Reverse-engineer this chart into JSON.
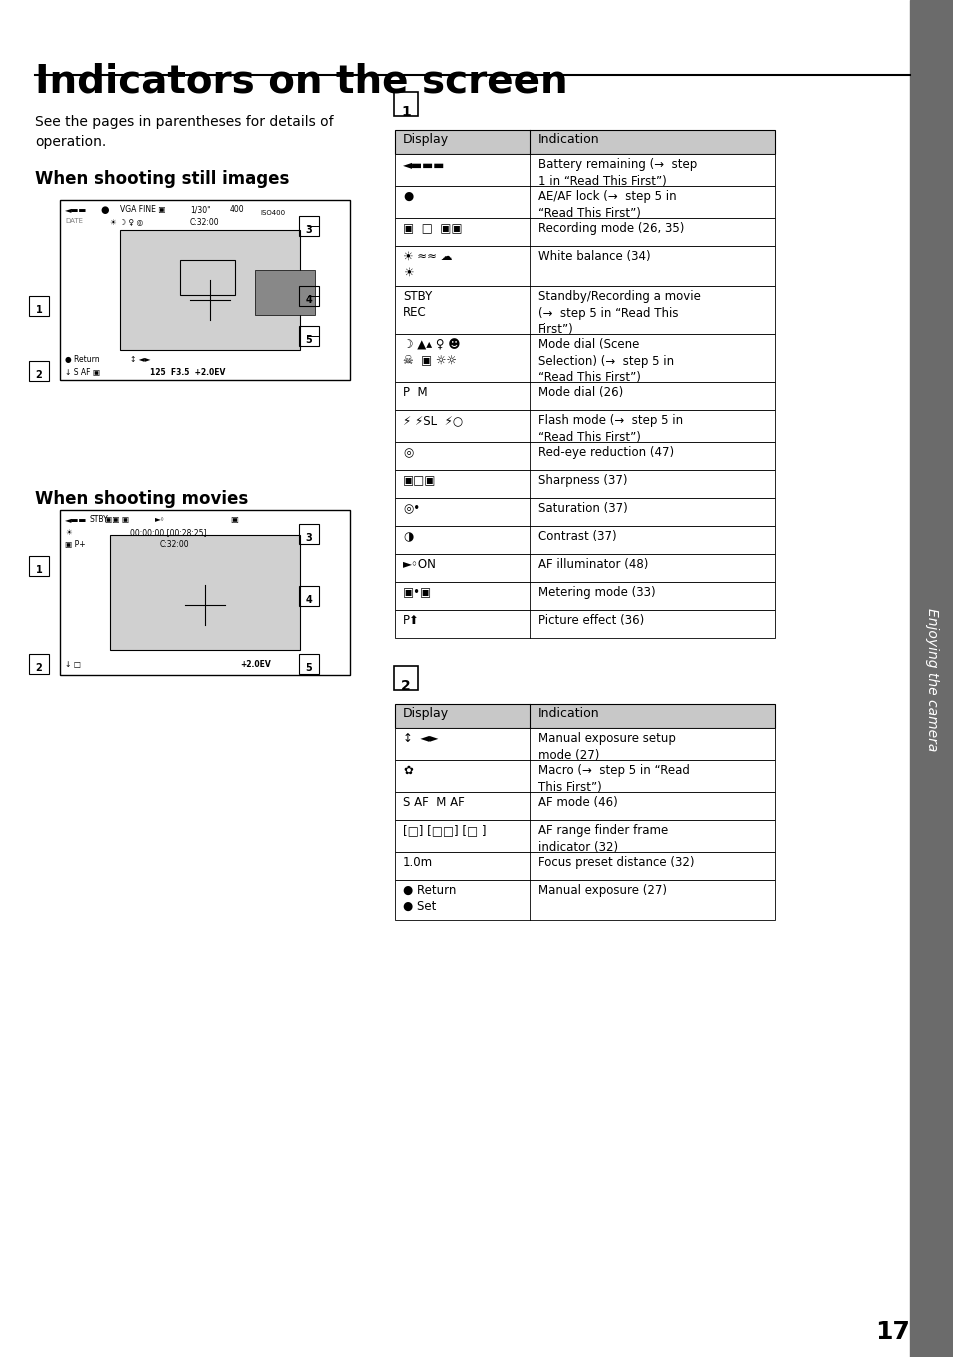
{
  "title": "Indicators on the screen",
  "page_number": "17",
  "bg_color": "#ffffff",
  "sidebar_color": "#6b6b6b",
  "sidebar_text": "Enjoying the camera",
  "intro_text": "See the pages in parentheses for details of\noperation.",
  "section1_title": "When shooting still images",
  "section2_title": "When shooting movies",
  "table1_label": "1",
  "table2_label": "2",
  "table_header": [
    "Display",
    "Indication"
  ],
  "table1_rows": [
    [
      "◄▬▬▬",
      "Battery remaining (→  step 1 in “Read This First”)"
    ],
    [
      "●",
      "AE/AF lock (→  step 5 in “Read This First”)"
    ],
    [
      "▣  □  ▣▣",
      "Recording mode (26, 35)"
    ],
    [
      "☀ ≈≈ ☁\n☀",
      "White balance (34)"
    ],
    [
      "STBY\nREC",
      "Standby/Recording a movie (→  step 5 in “Read This First”)"
    ],
    [
      "☽ ☿ ♀ ☻\n☠  ▣ ☼☼",
      "Mode dial (Scene Selection) (→  step 5 in “Read This First”)"
    ],
    [
      "P  M",
      "Mode dial (26)"
    ],
    [
      "⚡ ⚡SL  ⚡○",
      "Flash mode (→  step 5 in “Read This First”)"
    ],
    [
      "◎",
      "Red-eye reduction (47)"
    ],
    [
      "▣□▣",
      "Sharpness (37)"
    ],
    [
      "◎•",
      "Saturation (37)"
    ],
    [
      "◑",
      "Contrast (37)"
    ],
    [
      "►◦ON",
      "AF illuminator (48)"
    ],
    [
      "▣•▣",
      "Metering mode (33)"
    ],
    [
      "P⬆",
      "Picture effect (36)"
    ]
  ],
  "table2_rows": [
    [
      "↕  ◄►",
      "Manual exposure setup mode (27)"
    ],
    [
      "✿",
      "Macro (→  step 5 in “Read This First”)"
    ],
    [
      "S AF  M AF",
      "AF mode (46)"
    ],
    [
      "[□] [□□] [□ ]",
      "AF range finder frame indicator (32)"
    ],
    [
      "1.0m",
      "Focus preset distance (32)"
    ],
    [
      "● Return\n● Set",
      "Manual exposure (27)"
    ]
  ]
}
